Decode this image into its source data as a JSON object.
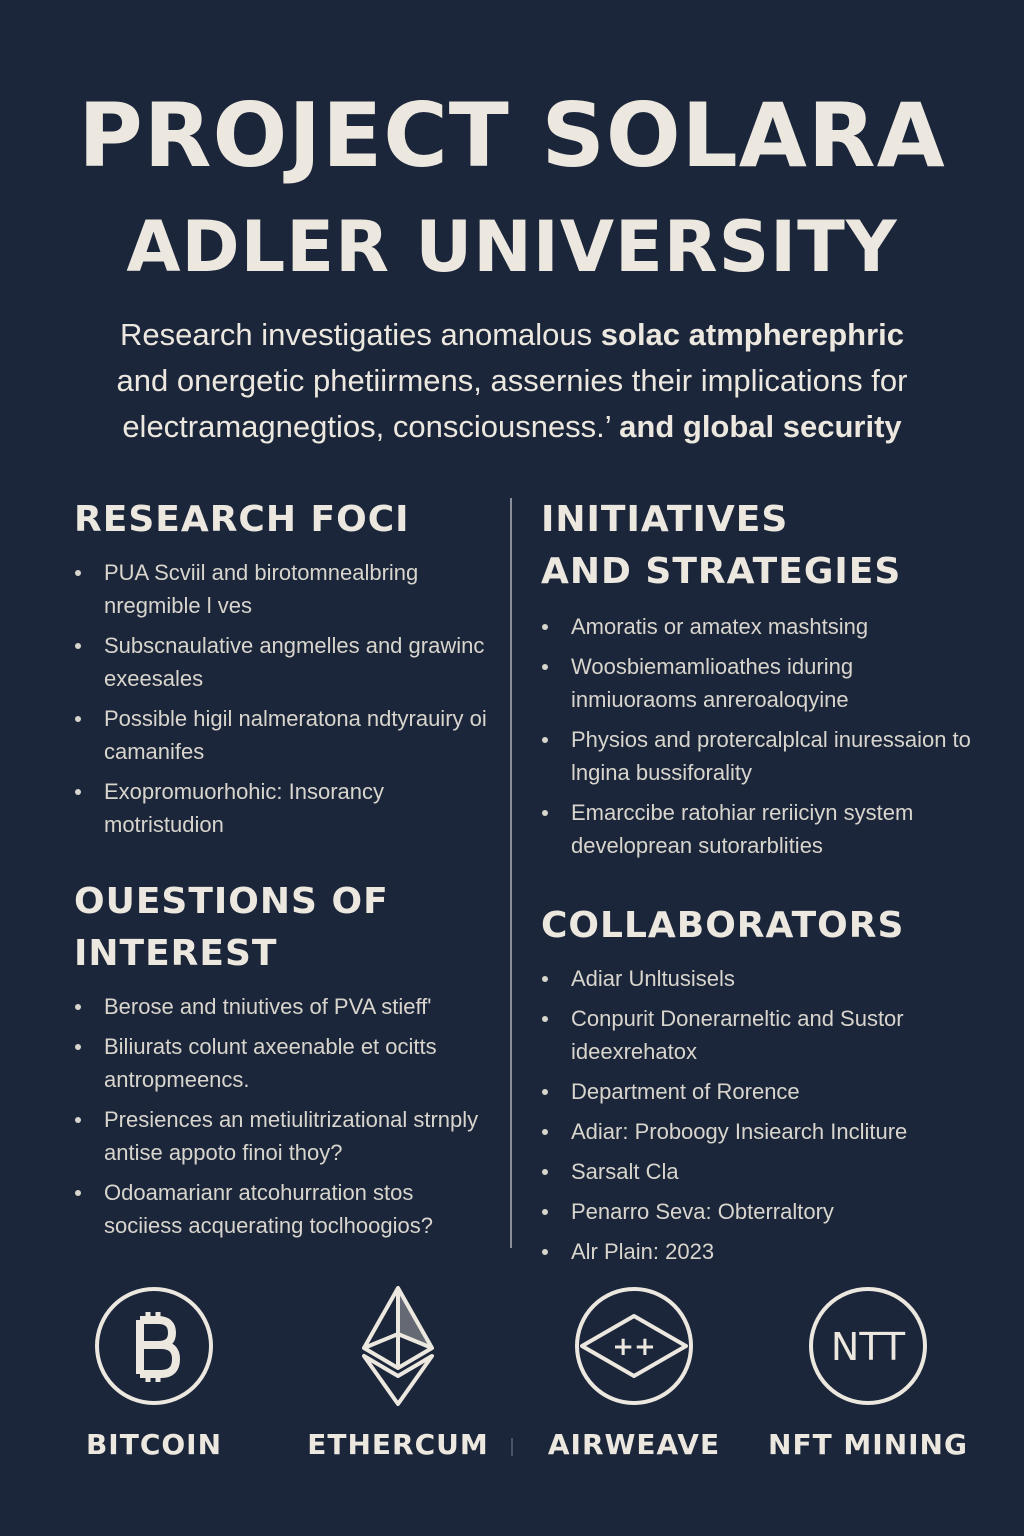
{
  "header": {
    "title_line1": "PROJECT SOLARA",
    "title_line2": "ADLER UNIVERSITY"
  },
  "intro": {
    "line1_a": "Research investigaties anomalous ",
    "line1_b": "solac atmpherephric",
    "line2": "and onergetic phetiirmens, assernies their implications for",
    "line3_a": "electramagnegtios, consciousness.’ ",
    "line3_b": "and global security"
  },
  "research_foci": {
    "heading": "RESEARCH FOCI",
    "items": [
      "PUA  Scviil and birotomnealbring nregmible l ves",
      "Subscnaulative angmelles and grawinc exeesales",
      "Possible higil nalmeratona ndtyrauiry  oi  camanifes",
      "Exopromuorhohic: Insorancy motristudion"
    ]
  },
  "initiatives": {
    "heading_line1": "INITIATIVES",
    "heading_line2": "AND STRATEGIES",
    "items": [
      "Amoratis  or  amatex mashtsing",
      "Woosbiemamlioathes iduring inmiuoraoms anreroaloqyine",
      "Physios and protercalplcal inuressaion to lngina bussiforality",
      "Emarccibe ratohiar reriiciyn system developrean sutorarblities"
    ]
  },
  "questions": {
    "heading_line1": "OUESTIONS OF",
    "heading_line2": "INTEREST",
    "items": [
      "Berose and tniutives of PVA stieff'",
      "Biliurats colunt axeenable et ocitts antropmeencs.",
      "Presiences an metiulitrizational strnply antise appoto finoi thoy?",
      "Odoamarianr atcohurration stos sociiess acquerating toclhoogios?"
    ]
  },
  "collaborators": {
    "heading": "COLLABORATORS",
    "items": [
      "Adiar Unltusisels",
      "Conpurit Donerarneltic and Sustor ideexrehatox",
      "Department of Rorence",
      "Adiar: Proboogy Insiearch Incliture",
      "Sarsalt Cla",
      "Penarro Seva: Obterraltory",
      "Alr Plain: 2023"
    ]
  },
  "icons": [
    {
      "icon": "bitcoin-icon",
      "label": "BITCOIN"
    },
    {
      "icon": "ethereum-icon",
      "label": "ETHERCUM"
    },
    {
      "icon": "airweave-icon",
      "label": "AIRWEAVE",
      "glyph": "++"
    },
    {
      "icon": "nft-icon",
      "label": "NFT MINING",
      "glyph": "NTT"
    }
  ],
  "colors": {
    "background": "#1c263a",
    "text": "#ece8df",
    "body_text": "#d8d5cd",
    "divider": "#8a8f99"
  }
}
